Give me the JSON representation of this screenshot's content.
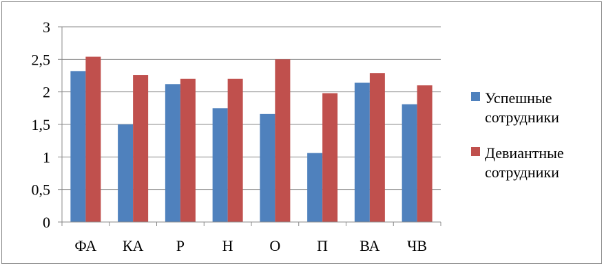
{
  "chart_data": {
    "type": "bar",
    "title": "",
    "xlabel": "",
    "ylabel": "",
    "categories": [
      "ФА",
      "КА",
      "Р",
      "Н",
      "О",
      "П",
      "ВА",
      "ЧВ"
    ],
    "ylim": [
      0,
      3
    ],
    "yticks": [
      0,
      0.5,
      1,
      1.5,
      2,
      2.5,
      3
    ],
    "ytick_labels": [
      "0",
      "0,5",
      "1",
      "1,5",
      "2",
      "2,5",
      "3"
    ],
    "grid": true,
    "legend_position": "right",
    "series": [
      {
        "name_lines": [
          "Успешные",
          "сотрудники"
        ],
        "color": "#4f81bd",
        "values": [
          2.32,
          1.5,
          2.12,
          1.75,
          1.66,
          1.06,
          2.14,
          1.81
        ]
      },
      {
        "name_lines": [
          "Девиантные",
          "сотрудники"
        ],
        "color": "#c0504d",
        "values": [
          2.54,
          2.26,
          2.2,
          2.2,
          2.5,
          1.98,
          2.29,
          2.1
        ]
      }
    ],
    "colors": {
      "grid": "#898989",
      "axis": "#898989",
      "frame": "#888888"
    }
  }
}
